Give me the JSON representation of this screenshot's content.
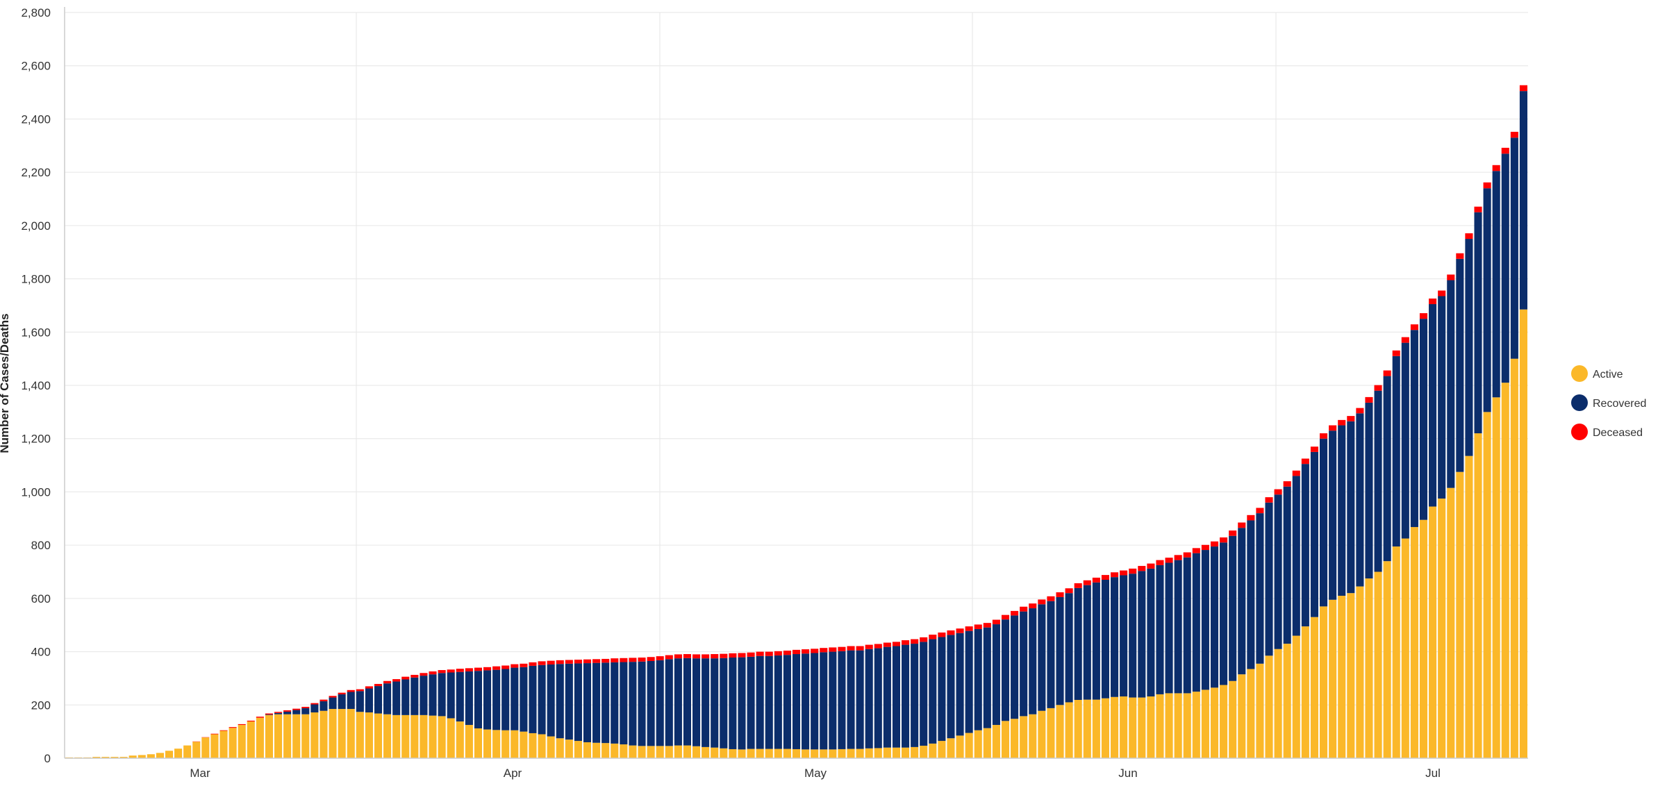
{
  "chart_data": {
    "type": "bar",
    "stacked": true,
    "ylabel": "Number of Cases/Deaths",
    "xlabel": "",
    "ylim": [
      0,
      2800
    ],
    "yticks": [
      0,
      200,
      400,
      600,
      800,
      1000,
      1200,
      1400,
      1600,
      1800,
      2000,
      2200,
      2400,
      2600,
      2800
    ],
    "x_tick_labels": [
      "Mar",
      "Apr",
      "May",
      "Jun",
      "Jul"
    ],
    "legend_position": "right",
    "grid": true,
    "series": [
      {
        "name": "Active",
        "color": "#FBB829",
        "values": [
          3,
          3,
          3,
          5,
          5,
          5,
          5,
          10,
          12,
          15,
          20,
          28,
          36,
          48,
          62,
          78,
          90,
          103,
          114,
          125,
          138,
          152,
          162,
          165,
          165,
          165,
          165,
          172,
          178,
          185,
          185,
          185,
          174,
          172,
          168,
          165,
          162,
          162,
          162,
          162,
          160,
          158,
          150,
          138,
          125,
          112,
          108,
          106,
          105,
          105,
          100,
          94,
          90,
          82,
          75,
          70,
          65,
          60,
          58,
          57,
          55,
          52,
          48,
          46,
          46,
          46,
          46,
          48,
          48,
          45,
          42,
          40,
          37,
          34,
          33,
          35,
          35,
          35,
          35,
          35,
          34,
          33,
          33,
          33,
          33,
          34,
          35,
          35,
          37,
          38,
          40,
          40,
          40,
          42,
          47,
          55,
          65,
          75,
          85,
          95,
          105,
          113,
          125,
          140,
          148,
          158,
          165,
          178,
          188,
          200,
          210,
          219,
          220,
          220,
          225,
          230,
          232,
          228,
          228,
          232,
          240,
          244,
          244,
          244,
          250,
          257,
          265,
          275,
          290,
          315,
          335,
          355,
          385,
          410,
          430,
          460,
          495,
          530,
          570,
          595,
          610,
          620,
          645,
          675,
          700,
          740,
          795,
          825,
          868,
          895,
          945,
          975,
          1015,
          1075,
          1135,
          1220,
          1300,
          1355,
          1410,
          1500,
          1685
        ]
      },
      {
        "name": "Recovered",
        "color": "#0B2D6B",
        "values": [
          0,
          0,
          0,
          0,
          0,
          0,
          0,
          0,
          0,
          0,
          0,
          0,
          0,
          0,
          0,
          0,
          0,
          0,
          0,
          0,
          0,
          0,
          2,
          5,
          10,
          16,
          23,
          30,
          36,
          43,
          55,
          64,
          78,
          90,
          103,
          116,
          126,
          134,
          141,
          148,
          155,
          162,
          172,
          186,
          201,
          216,
          222,
          226,
          230,
          235,
          242,
          253,
          260,
          270,
          279,
          285,
          291,
          297,
          300,
          302,
          305,
          309,
          314,
          317,
          319,
          322,
          326,
          327,
          328,
          330,
          333,
          335,
          339,
          344,
          346,
          346,
          349,
          349,
          351,
          353,
          357,
          360,
          362,
          365,
          367,
          368,
          370,
          370,
          373,
          375,
          378,
          381,
          386,
          388,
          390,
          392,
          390,
          388,
          385,
          383,
          380,
          378,
          378,
          381,
          388,
          393,
          398,
          400,
          402,
          405,
          410,
          420,
          430,
          440,
          445,
          450,
          455,
          465,
          475,
          480,
          485,
          490,
          500,
          510,
          520,
          525,
          530,
          535,
          545,
          550,
          558,
          565,
          575,
          580,
          590,
          600,
          610,
          620,
          630,
          635,
          640,
          645,
          650,
          660,
          680,
          695,
          715,
          735,
          740,
          755,
          760,
          760,
          780,
          800,
          815,
          830,
          840,
          850,
          860,
          830,
          820
        ]
      },
      {
        "name": "Deceased",
        "color": "#FF0000",
        "values": [
          0,
          0,
          0,
          0,
          0,
          0,
          0,
          0,
          0,
          0,
          0,
          0,
          0,
          0,
          1,
          1,
          2,
          2,
          3,
          3,
          3,
          4,
          4,
          4,
          5,
          5,
          5,
          5,
          6,
          6,
          6,
          7,
          7,
          8,
          8,
          9,
          9,
          10,
          10,
          10,
          11,
          11,
          11,
          12,
          12,
          12,
          12,
          13,
          13,
          13,
          13,
          13,
          14,
          14,
          14,
          14,
          14,
          14,
          14,
          14,
          15,
          15,
          15,
          15,
          15,
          15,
          15,
          15,
          15,
          15,
          15,
          16,
          16,
          16,
          16,
          16,
          16,
          16,
          16,
          16,
          16,
          16,
          16,
          16,
          16,
          16,
          16,
          16,
          16,
          16,
          16,
          16,
          17,
          17,
          17,
          17,
          17,
          17,
          17,
          17,
          17,
          17,
          17,
          17,
          17,
          18,
          18,
          18,
          18,
          18,
          18,
          18,
          18,
          18,
          18,
          18,
          18,
          19,
          19,
          19,
          19,
          19,
          19,
          19,
          19,
          19,
          19,
          19,
          20,
          20,
          20,
          20,
          20,
          20,
          20,
          20,
          20,
          20,
          20,
          20,
          20,
          20,
          20,
          21,
          21,
          21,
          21,
          21,
          21,
          21,
          21,
          21,
          21,
          21,
          21,
          21,
          22,
          22,
          22,
          22,
          22,
          22
        ]
      }
    ]
  }
}
